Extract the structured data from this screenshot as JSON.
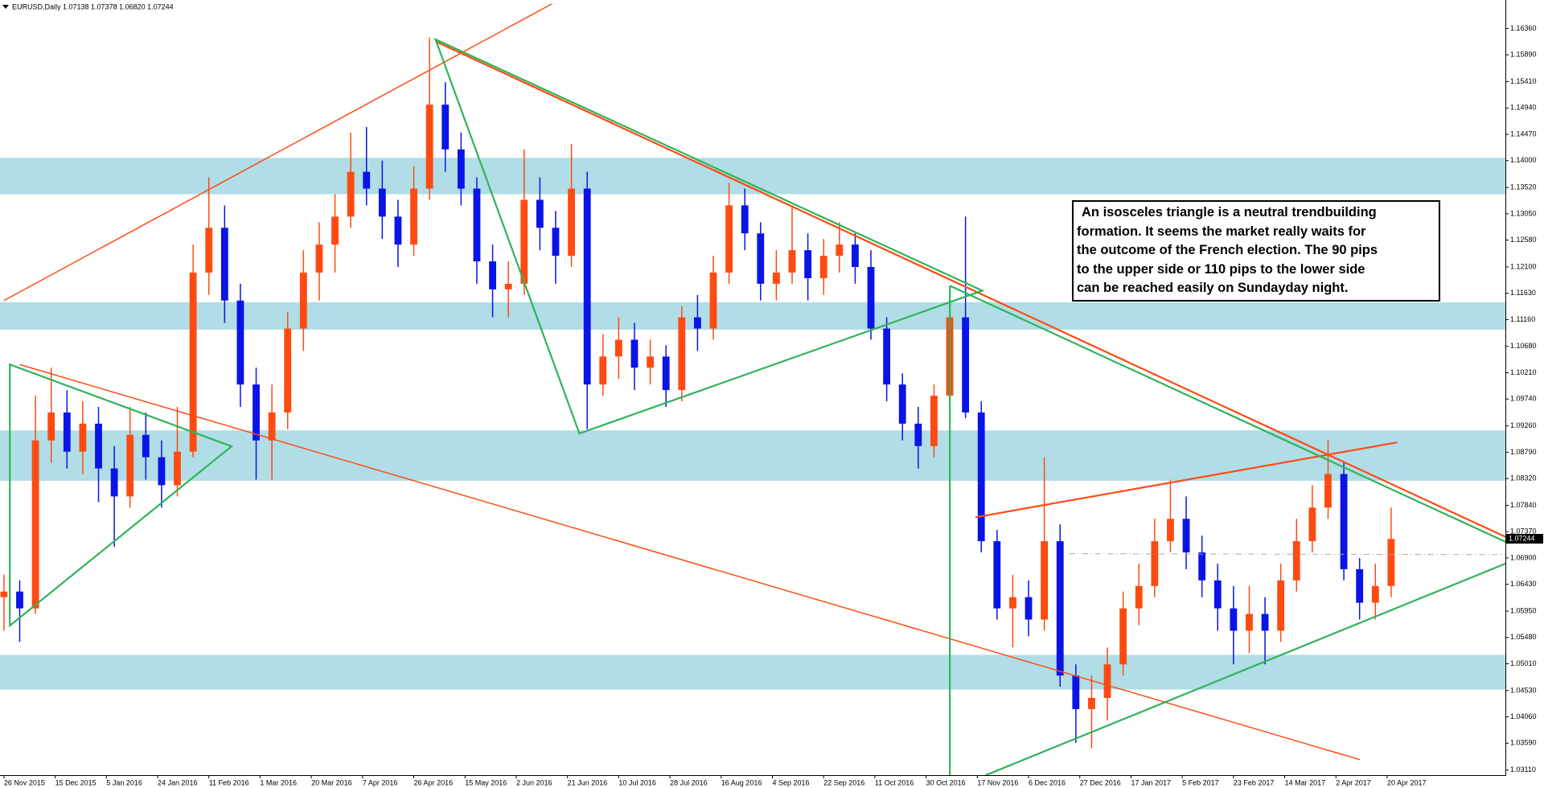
{
  "chart_data": {
    "type": "candlestick",
    "header": "EURUSD,Daily  1.07138 1.07378 1.06820 1.07244",
    "annotation": [
      "An isosceles triangle is a neutral trendbuilding",
      "formation. It seems the market really waits for",
      "the outcome of the French election. The 90 pips",
      "to the upper side or 110 pips to the lower side",
      "can be reached easily on Sundayday night."
    ],
    "up_color": "#ff4a12",
    "down_color": "#0a14e6",
    "zone_color": "#b0dde6",
    "xlim": [
      -1,
      381
    ],
    "ylim": [
      1.0302,
      1.1687
    ],
    "xticks": [
      {
        "value": 0,
        "label": "26 Nov 2015"
      },
      {
        "value": 13,
        "label": "15 Dec 2015"
      },
      {
        "value": 26,
        "label": "5 Jan 2016"
      },
      {
        "value": 39,
        "label": "24 Jan 2016"
      },
      {
        "value": 52,
        "label": "11 Feb 2016"
      },
      {
        "value": 65,
        "label": "1 Mar 2016"
      },
      {
        "value": 78,
        "label": "20 Mar 2016"
      },
      {
        "value": 91,
        "label": "7 Apr 2016"
      },
      {
        "value": 104,
        "label": "26 Apr 2016"
      },
      {
        "value": 117,
        "label": "15 May 2016"
      },
      {
        "value": 130,
        "label": "2 Jun 2016"
      },
      {
        "value": 143,
        "label": "21 Jun 2016"
      },
      {
        "value": 156,
        "label": "10 Jul 2016"
      },
      {
        "value": 169,
        "label": "28 Jul 2016"
      },
      {
        "value": 182,
        "label": "16 Aug 2016"
      },
      {
        "value": 195,
        "label": "4 Sep 2016"
      },
      {
        "value": 208,
        "label": "22 Sep 2016"
      },
      {
        "value": 221,
        "label": "11 Oct 2016"
      },
      {
        "value": 234,
        "label": "30 Oct 2016"
      },
      {
        "value": 247,
        "label": "17 Nov 2016"
      },
      {
        "value": 260,
        "label": "6 Dec 2016"
      },
      {
        "value": 273,
        "label": "27 Dec 2016"
      },
      {
        "value": 286,
        "label": "17 Jan 2017"
      },
      {
        "value": 299,
        "label": "5 Feb 2017"
      },
      {
        "value": 312,
        "label": "23 Feb 2017"
      },
      {
        "value": 325,
        "label": "14 Mar 2017"
      },
      {
        "value": 338,
        "label": "2 Apr 2017"
      },
      {
        "value": 351,
        "label": "20 Apr 2017"
      }
    ],
    "yticks": [
      {
        "value": 1.1636,
        "label": "1.16360"
      },
      {
        "value": 1.1589,
        "label": "1.15890"
      },
      {
        "value": 1.1541,
        "label": "1.15410"
      },
      {
        "value": 1.1494,
        "label": "1.14940"
      },
      {
        "value": 1.1447,
        "label": "1.14470"
      },
      {
        "value": 1.14,
        "label": "1.14000"
      },
      {
        "value": 1.1352,
        "label": "1.13520"
      },
      {
        "value": 1.1305,
        "label": "1.13050"
      },
      {
        "value": 1.1258,
        "label": "1.12580"
      },
      {
        "value": 1.121,
        "label": "1.12100"
      },
      {
        "value": 1.1163,
        "label": "1.11630"
      },
      {
        "value": 1.1116,
        "label": "1.11160"
      },
      {
        "value": 1.1068,
        "label": "1.10680"
      },
      {
        "value": 1.1021,
        "label": "1.10210"
      },
      {
        "value": 1.0974,
        "label": "1.09740"
      },
      {
        "value": 1.0926,
        "label": "1.09260"
      },
      {
        "value": 1.0879,
        "label": "1.08790"
      },
      {
        "value": 1.0832,
        "label": "1.08320"
      },
      {
        "value": 1.0784,
        "label": "1.07840"
      },
      {
        "value": 1.0737,
        "label": "1.07370"
      },
      {
        "value": 1.069,
        "label": "1.06900"
      },
      {
        "value": 1.0643,
        "label": "1.06430"
      },
      {
        "value": 1.0595,
        "label": "1.05950"
      },
      {
        "value": 1.0548,
        "label": "1.05480"
      },
      {
        "value": 1.0501,
        "label": "1.05010"
      },
      {
        "value": 1.0453,
        "label": "1.04530"
      },
      {
        "value": 1.0406,
        "label": "1.04060"
      },
      {
        "value": 1.0359,
        "label": "1.03590"
      },
      {
        "value": 1.0311,
        "label": "1.03110"
      }
    ],
    "last_price": {
      "value": 1.07244,
      "label": "1.07244"
    },
    "zones": [
      [
        1.134,
        1.1405
      ],
      [
        1.1098,
        1.1147
      ],
      [
        1.0828,
        1.0918
      ],
      [
        1.0455,
        1.0517
      ]
    ],
    "x": [
      0,
      4,
      8,
      12,
      16,
      20,
      24,
      28,
      32,
      36,
      40,
      44,
      48,
      52,
      56,
      60,
      64,
      68,
      72,
      76,
      80,
      84,
      88,
      92,
      96,
      100,
      104,
      108,
      112,
      116,
      120,
      124,
      128,
      132,
      136,
      140,
      144,
      148,
      152,
      156,
      160,
      164,
      168,
      172,
      176,
      180,
      184,
      188,
      192,
      196,
      200,
      204,
      208,
      212,
      216,
      220,
      224,
      228,
      232,
      236,
      240,
      244,
      248,
      252,
      256,
      260,
      264,
      268,
      272,
      276,
      280,
      284,
      288,
      292,
      296,
      300,
      304,
      308,
      312,
      316,
      320,
      324,
      328,
      332,
      336,
      340,
      344,
      348,
      352
    ],
    "ohlc": [
      [
        1.062,
        1.066,
        1.056,
        1.063
      ],
      [
        1.063,
        1.065,
        1.054,
        1.06
      ],
      [
        1.06,
        1.098,
        1.059,
        1.09
      ],
      [
        1.09,
        1.103,
        1.086,
        1.095
      ],
      [
        1.095,
        1.099,
        1.085,
        1.088
      ],
      [
        1.088,
        1.097,
        1.084,
        1.093
      ],
      [
        1.093,
        1.096,
        1.079,
        1.085
      ],
      [
        1.085,
        1.089,
        1.071,
        1.08
      ],
      [
        1.08,
        1.096,
        1.078,
        1.091
      ],
      [
        1.091,
        1.095,
        1.083,
        1.087
      ],
      [
        1.087,
        1.09,
        1.078,
        1.082
      ],
      [
        1.082,
        1.096,
        1.08,
        1.088
      ],
      [
        1.088,
        1.125,
        1.087,
        1.12
      ],
      [
        1.12,
        1.137,
        1.116,
        1.128
      ],
      [
        1.128,
        1.132,
        1.111,
        1.115
      ],
      [
        1.115,
        1.118,
        1.096,
        1.1
      ],
      [
        1.1,
        1.103,
        1.083,
        1.09
      ],
      [
        1.09,
        1.1,
        1.083,
        1.095
      ],
      [
        1.095,
        1.113,
        1.092,
        1.11
      ],
      [
        1.11,
        1.124,
        1.106,
        1.12
      ],
      [
        1.12,
        1.129,
        1.115,
        1.125
      ],
      [
        1.125,
        1.134,
        1.12,
        1.13
      ],
      [
        1.13,
        1.145,
        1.128,
        1.138
      ],
      [
        1.138,
        1.146,
        1.132,
        1.135
      ],
      [
        1.135,
        1.14,
        1.126,
        1.13
      ],
      [
        1.13,
        1.133,
        1.121,
        1.125
      ],
      [
        1.125,
        1.139,
        1.123,
        1.135
      ],
      [
        1.135,
        1.162,
        1.133,
        1.15
      ],
      [
        1.15,
        1.154,
        1.138,
        1.142
      ],
      [
        1.142,
        1.145,
        1.132,
        1.135
      ],
      [
        1.135,
        1.137,
        1.118,
        1.122
      ],
      [
        1.122,
        1.125,
        1.112,
        1.117
      ],
      [
        1.117,
        1.122,
        1.112,
        1.118
      ],
      [
        1.118,
        1.142,
        1.116,
        1.133
      ],
      [
        1.133,
        1.137,
        1.124,
        1.128
      ],
      [
        1.128,
        1.131,
        1.118,
        1.123
      ],
      [
        1.123,
        1.143,
        1.121,
        1.135
      ],
      [
        1.135,
        1.138,
        1.092,
        1.1
      ],
      [
        1.1,
        1.109,
        1.098,
        1.105
      ],
      [
        1.105,
        1.112,
        1.101,
        1.108
      ],
      [
        1.108,
        1.111,
        1.099,
        1.103
      ],
      [
        1.103,
        1.108,
        1.1,
        1.105
      ],
      [
        1.105,
        1.107,
        1.096,
        1.099
      ],
      [
        1.099,
        1.114,
        1.097,
        1.112
      ],
      [
        1.112,
        1.116,
        1.106,
        1.11
      ],
      [
        1.11,
        1.123,
        1.108,
        1.12
      ],
      [
        1.12,
        1.136,
        1.118,
        1.132
      ],
      [
        1.132,
        1.135,
        1.124,
        1.127
      ],
      [
        1.127,
        1.129,
        1.115,
        1.118
      ],
      [
        1.118,
        1.124,
        1.115,
        1.12
      ],
      [
        1.12,
        1.132,
        1.118,
        1.124
      ],
      [
        1.124,
        1.127,
        1.115,
        1.119
      ],
      [
        1.119,
        1.126,
        1.116,
        1.123
      ],
      [
        1.123,
        1.129,
        1.12,
        1.125
      ],
      [
        1.125,
        1.127,
        1.118,
        1.121
      ],
      [
        1.121,
        1.124,
        1.108,
        1.11
      ],
      [
        1.11,
        1.112,
        1.097,
        1.1
      ],
      [
        1.1,
        1.102,
        1.09,
        1.093
      ],
      [
        1.093,
        1.096,
        1.085,
        1.089
      ],
      [
        1.089,
        1.1,
        1.087,
        1.098
      ],
      [
        1.098,
        1.115,
        1.096,
        1.112
      ],
      [
        1.112,
        1.13,
        1.094,
        1.095
      ],
      [
        1.095,
        1.097,
        1.07,
        1.072
      ],
      [
        1.072,
        1.074,
        1.058,
        1.06
      ],
      [
        1.06,
        1.066,
        1.053,
        1.062
      ],
      [
        1.062,
        1.065,
        1.055,
        1.058
      ],
      [
        1.058,
        1.087,
        1.056,
        1.072
      ],
      [
        1.072,
        1.075,
        1.046,
        1.048
      ],
      [
        1.048,
        1.05,
        1.036,
        1.042
      ],
      [
        1.042,
        1.048,
        1.035,
        1.044
      ],
      [
        1.044,
        1.053,
        1.04,
        1.05
      ],
      [
        1.05,
        1.063,
        1.048,
        1.06
      ],
      [
        1.06,
        1.068,
        1.057,
        1.064
      ],
      [
        1.064,
        1.076,
        1.062,
        1.072
      ],
      [
        1.072,
        1.083,
        1.07,
        1.076
      ],
      [
        1.076,
        1.08,
        1.067,
        1.07
      ],
      [
        1.07,
        1.073,
        1.062,
        1.065
      ],
      [
        1.065,
        1.068,
        1.056,
        1.06
      ],
      [
        1.06,
        1.064,
        1.05,
        1.056
      ],
      [
        1.056,
        1.064,
        1.052,
        1.059
      ],
      [
        1.059,
        1.062,
        1.05,
        1.056
      ],
      [
        1.056,
        1.068,
        1.054,
        1.065
      ],
      [
        1.065,
        1.076,
        1.063,
        1.072
      ],
      [
        1.072,
        1.082,
        1.07,
        1.078
      ],
      [
        1.078,
        1.09,
        1.076,
        1.084
      ],
      [
        1.084,
        1.086,
        1.065,
        1.067
      ],
      [
        1.067,
        1.069,
        1.058,
        1.061
      ],
      [
        1.061,
        1.068,
        1.058,
        1.064
      ],
      [
        1.064,
        1.078,
        1.062,
        1.0724
      ]
    ]
  }
}
